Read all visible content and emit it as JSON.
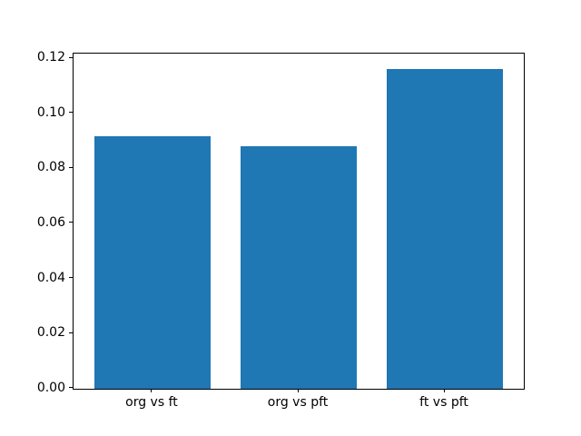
{
  "figure": {
    "background_color": "#ffffff",
    "title": ""
  },
  "chart_data": {
    "type": "bar",
    "categories": [
      "org vs ft",
      "org vs pft",
      "ft vs pft"
    ],
    "values": [
      0.0917,
      0.088,
      0.1161
    ],
    "title": "",
    "xlabel": "",
    "ylabel": "",
    "bar_color": "#1f77b4",
    "xlim": [
      -0.54,
      2.54
    ],
    "ylim": [
      0,
      0.1219
    ],
    "x_positions": [
      0,
      1,
      2
    ],
    "bar_width": 0.8,
    "yticks": [
      0.0,
      0.02,
      0.04,
      0.06,
      0.08,
      0.1,
      0.12
    ],
    "ytick_labels": [
      "0.00",
      "0.02",
      "0.04",
      "0.06",
      "0.08",
      "0.10",
      "0.12"
    ],
    "grid": false,
    "legend": false,
    "spine_color": "#000000",
    "tick_color": "#000000"
  }
}
